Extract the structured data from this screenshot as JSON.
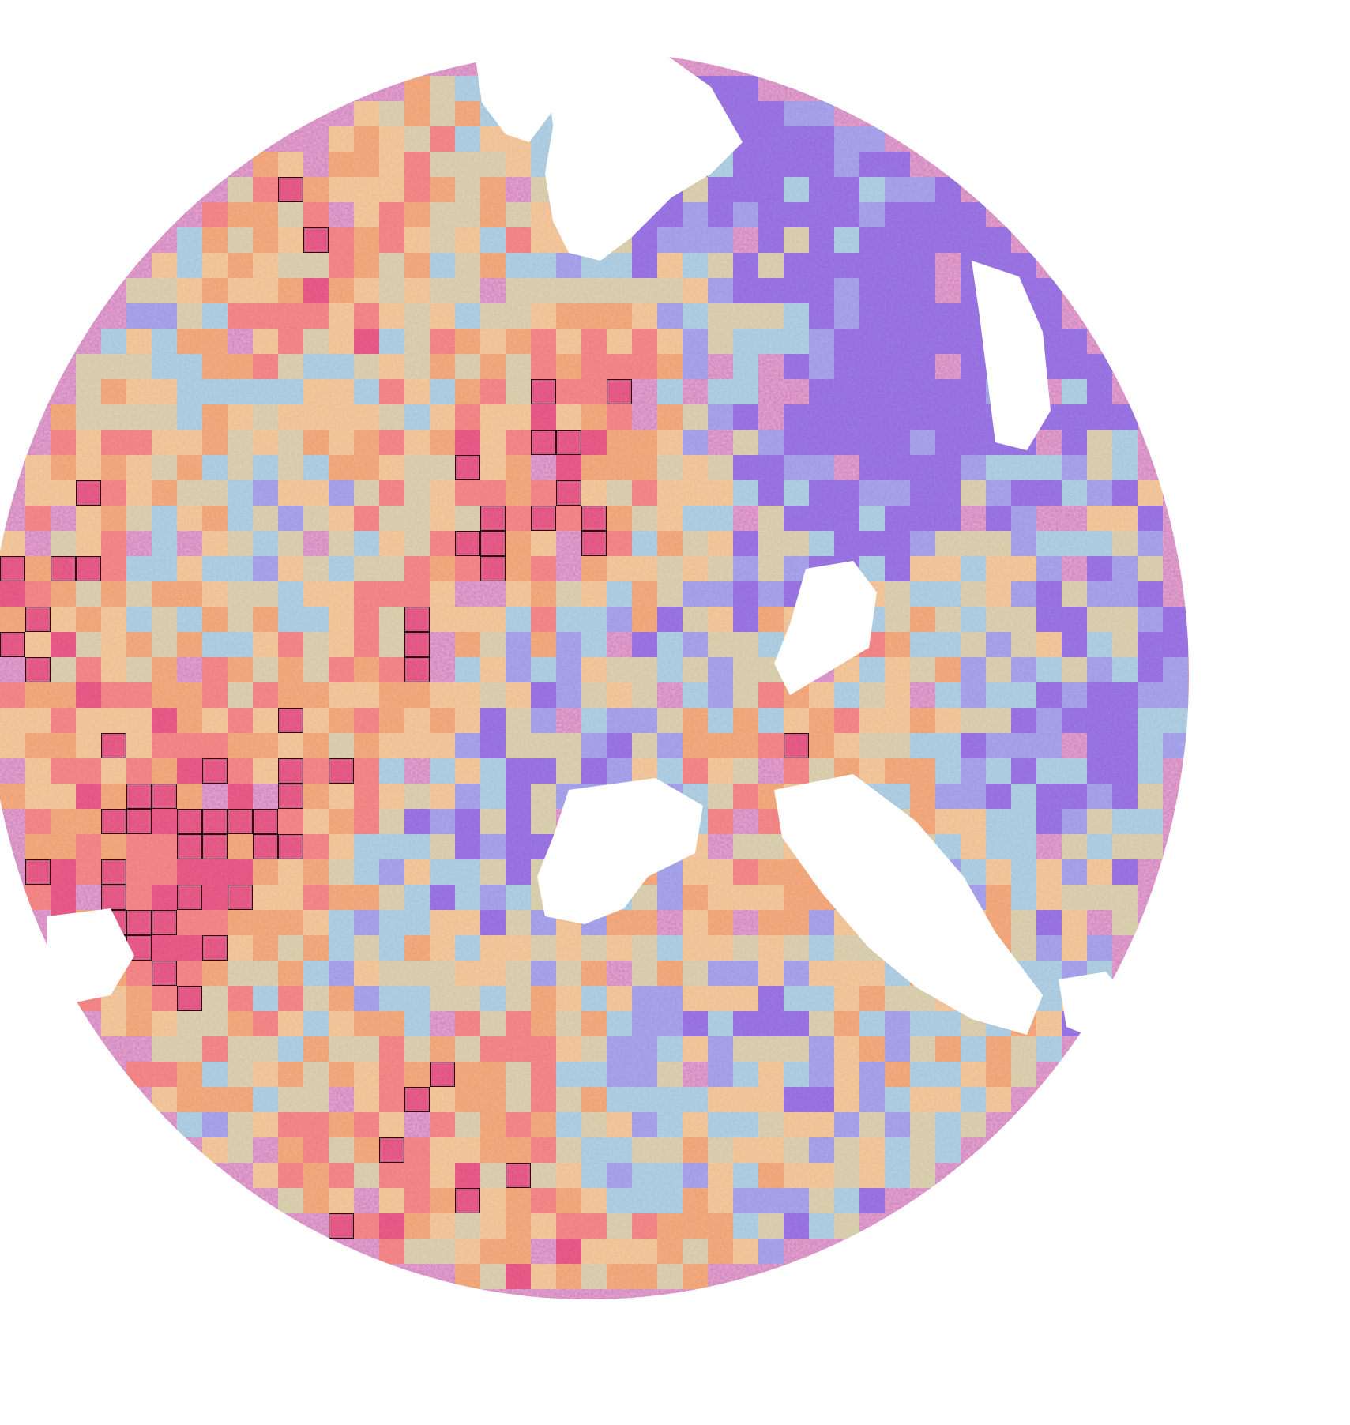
{
  "image": {
    "background": "#ffffff",
    "tissue_colors": {
      "stroma_pink": "#e7a3c8",
      "nuclei_purple": "#7a3f9e",
      "eosin_light": "#f3c7de"
    },
    "heatmap": {
      "colormap": "jet",
      "overlay_opacity": 0.6,
      "colors": [
        "#6a5cf0",
        "#7fa8ff",
        "#8ef0f0",
        "#d6f29a",
        "#ffe37a",
        "#ffb347",
        "#ff7a59",
        "#e9305a"
      ],
      "highlight_outline_color": "#111111"
    }
  }
}
